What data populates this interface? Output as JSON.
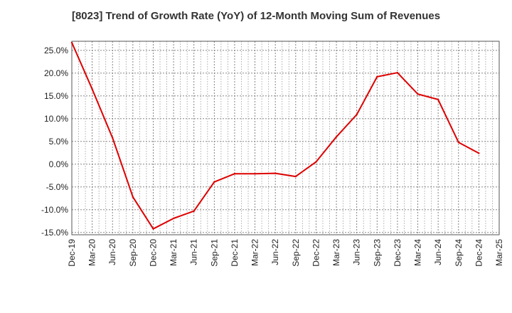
{
  "chart_data": {
    "type": "line",
    "title": "[8023]  Trend of Growth Rate (YoY) of 12-Month Moving Sum of Revenues",
    "xlabel": "",
    "ylabel": "",
    "x_ticks": [
      "Dec-19",
      "Mar-20",
      "Jun-20",
      "Sep-20",
      "Dec-20",
      "Mar-21",
      "Jun-21",
      "Sep-21",
      "Dec-21",
      "Mar-22",
      "Jun-22",
      "Sep-22",
      "Dec-22",
      "Mar-23",
      "Jun-23",
      "Sep-23",
      "Dec-23",
      "Mar-24",
      "Jun-24",
      "Sep-24",
      "Dec-24",
      "Mar-25"
    ],
    "y_ticks": [
      "25.0%",
      "20.0%",
      "15.0%",
      "10.0%",
      "5.0%",
      "0.0%",
      "-5.0%",
      "-10.0%",
      "-15.0%"
    ],
    "y_tick_values": [
      25,
      20,
      15,
      10,
      5,
      0,
      -5,
      -10,
      -15
    ],
    "ylim": [
      -15.5,
      27.0
    ],
    "grid": true,
    "line_color": "#dd0000",
    "series": [
      {
        "x": [
          "Dec-19",
          "Mar-20",
          "Jun-20",
          "Sep-20",
          "Dec-20",
          "Mar-21",
          "Jun-21",
          "Sep-21",
          "Dec-21",
          "Mar-22",
          "Jun-22",
          "Sep-22",
          "Dec-22",
          "Mar-23",
          "Jun-23",
          "Sep-23",
          "Dec-23",
          "Mar-24",
          "Jun-24",
          "Sep-24",
          "Dec-24"
        ],
        "values": [
          26.7,
          16.5,
          5.8,
          -7.2,
          -14.2,
          -11.9,
          -10.3,
          -3.9,
          -2.1,
          -2.1,
          -2.0,
          -2.7,
          0.5,
          6.0,
          10.9,
          19.2,
          20.1,
          15.4,
          14.2,
          4.8,
          2.4
        ]
      }
    ]
  }
}
